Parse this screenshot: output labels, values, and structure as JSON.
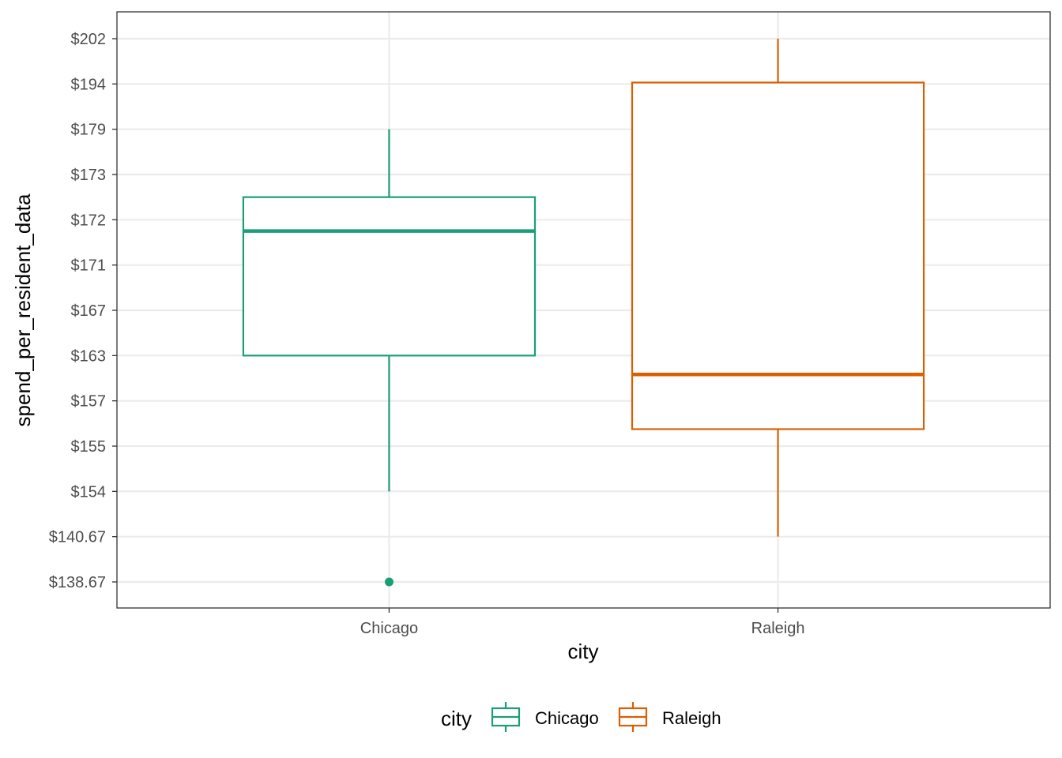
{
  "chart_data": {
    "type": "boxplot",
    "xlabel": "city",
    "ylabel": "spend_per_resident_data",
    "y_axis_type": "discrete-ordered",
    "y_ticks": [
      "$138.67",
      "$140.67",
      "$154",
      "$155",
      "$157",
      "$163",
      "$167",
      "$171",
      "$172",
      "$173",
      "$179",
      "$194",
      "$202"
    ],
    "categories": [
      "Chicago",
      "Raleigh"
    ],
    "boxes": [
      {
        "name": "Chicago",
        "color": "#1b9e77",
        "lower_whisker": "$154",
        "q1": "$163",
        "median": "$171.75",
        "q3": "$172.5",
        "upper_whisker": "$179",
        "outliers": [
          "$138.67"
        ]
      },
      {
        "name": "Raleigh",
        "color": "#d95f02",
        "lower_whisker": "$140.67",
        "q1": "$155.75",
        "median": "$160.5",
        "q3": "$194.25",
        "upper_whisker": "$202",
        "outliers": []
      }
    ],
    "box_positions": [
      0,
      1
    ],
    "grid": true,
    "legend": {
      "title": "city",
      "placement": "bottom",
      "entries": [
        "Chicago",
        "Raleigh"
      ]
    }
  }
}
